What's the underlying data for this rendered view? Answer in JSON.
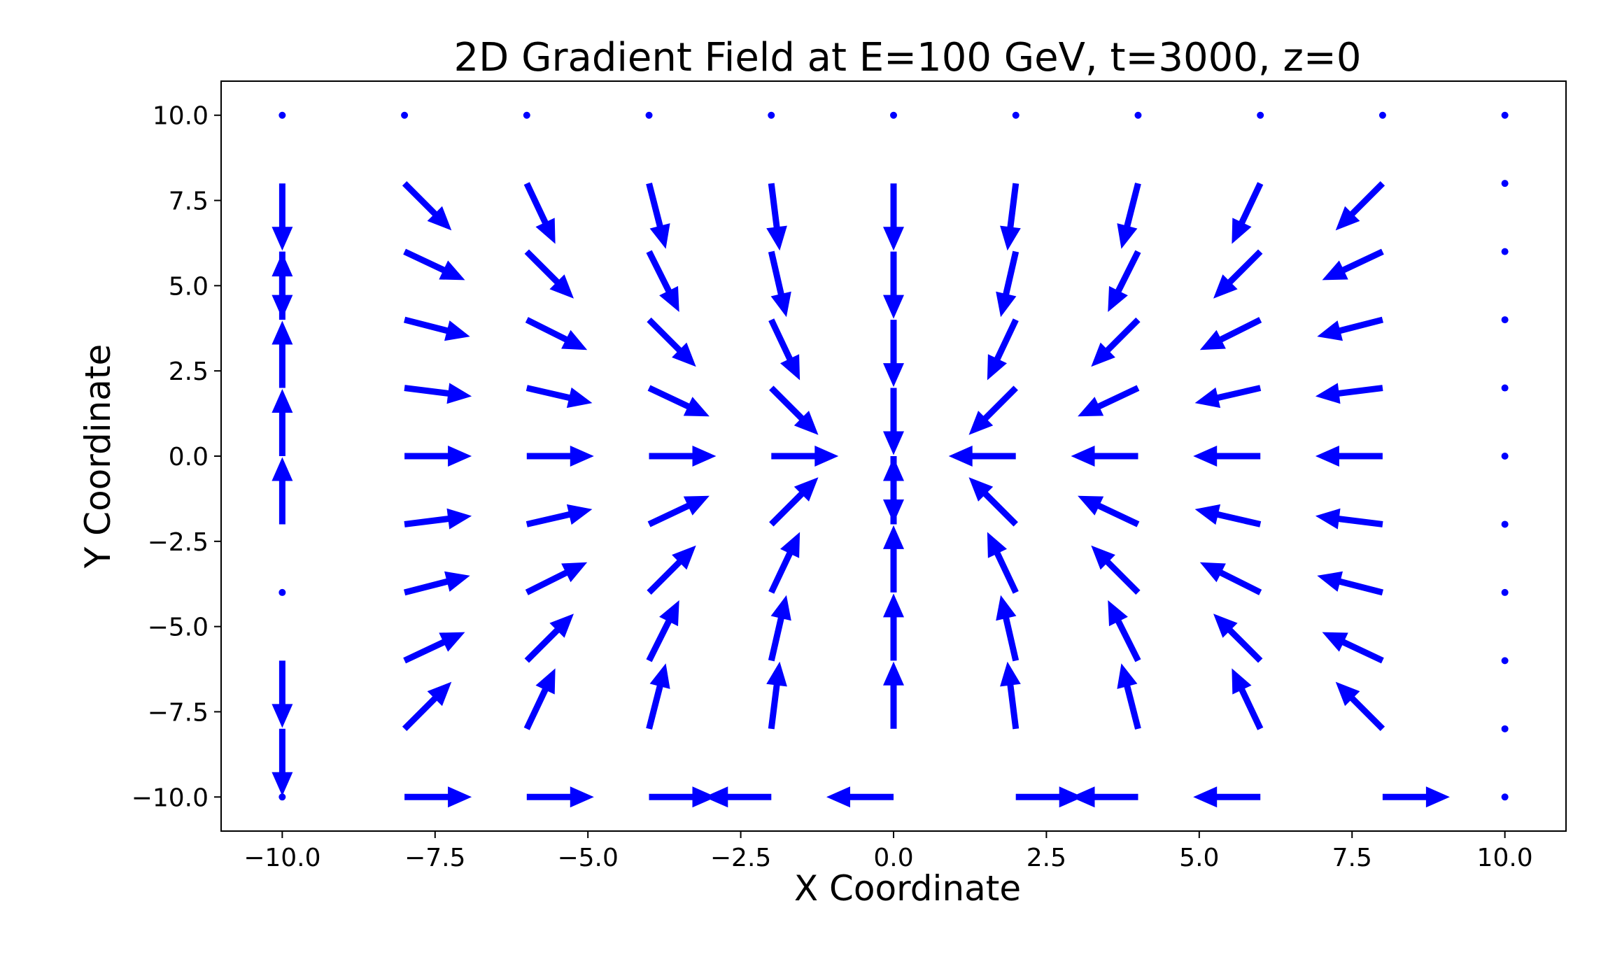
{
  "chart_data": {
    "type": "quiver",
    "title": "2D Gradient Field at E=100 GeV, t=3000, z=0",
    "xlabel": "X Coordinate",
    "ylabel": "Y Coordinate",
    "xlim": [
      -11,
      11
    ],
    "ylim": [
      -11,
      11
    ],
    "x_ticks": [
      -10.0,
      -7.5,
      -5.0,
      -2.5,
      0.0,
      2.5,
      5.0,
      7.5,
      10.0
    ],
    "x_tick_labels": [
      "−10.0",
      "−7.5",
      "−5.0",
      "−2.5",
      "0.0",
      "2.5",
      "5.0",
      "7.5",
      "10.0"
    ],
    "y_ticks": [
      10.0,
      7.5,
      5.0,
      2.5,
      0.0,
      -2.5,
      -5.0,
      -7.5,
      -10.0
    ],
    "y_tick_labels": [
      "10.0",
      "7.5",
      "5.0",
      "2.5",
      "0.0",
      "−2.5",
      "−5.0",
      "−7.5",
      "−10.0"
    ],
    "grid": false,
    "arrow_color": "#0000ff",
    "x_grid_points": [
      -10,
      -8,
      -6,
      -4,
      -2,
      0,
      2,
      4,
      6,
      8,
      10
    ],
    "y_grid_points": [
      -10,
      -8,
      -6,
      -4,
      -2,
      0,
      2,
      4,
      6,
      8,
      10
    ],
    "vectors": [
      {
        "x": -10,
        "y": 10,
        "u": 0,
        "v": 0
      },
      {
        "x": -8,
        "y": 10,
        "u": 0,
        "v": 0
      },
      {
        "x": -6,
        "y": 10,
        "u": 0,
        "v": 0
      },
      {
        "x": -4,
        "y": 10,
        "u": 0,
        "v": 0
      },
      {
        "x": -2,
        "y": 10,
        "u": 0,
        "v": 0
      },
      {
        "x": 0,
        "y": 10,
        "u": 0,
        "v": 0
      },
      {
        "x": 2,
        "y": 10,
        "u": 0,
        "v": 0
      },
      {
        "x": 4,
        "y": 10,
        "u": 0,
        "v": 0
      },
      {
        "x": 6,
        "y": 10,
        "u": 0,
        "v": 0
      },
      {
        "x": 8,
        "y": 10,
        "u": 0,
        "v": 0
      },
      {
        "x": 10,
        "y": 10,
        "u": 0,
        "v": 0
      },
      {
        "x": -10,
        "y": 8,
        "u": 0,
        "v": -2
      },
      {
        "x": -8,
        "y": 8,
        "u": 1.4,
        "v": -1.4
      },
      {
        "x": -6,
        "y": 8,
        "u": 0.85,
        "v": -1.8
      },
      {
        "x": -4,
        "y": 8,
        "u": 0.5,
        "v": -1.95
      },
      {
        "x": -2,
        "y": 8,
        "u": 0.25,
        "v": -2
      },
      {
        "x": 0,
        "y": 8,
        "u": 0,
        "v": -2
      },
      {
        "x": 2,
        "y": 8,
        "u": -0.25,
        "v": -2
      },
      {
        "x": 4,
        "y": 8,
        "u": -0.5,
        "v": -1.95
      },
      {
        "x": 6,
        "y": 8,
        "u": -0.85,
        "v": -1.8
      },
      {
        "x": 8,
        "y": 8,
        "u": -1.4,
        "v": -1.4
      },
      {
        "x": 10,
        "y": 8,
        "u": 0,
        "v": 0
      },
      {
        "x": -10,
        "y": 6,
        "u": 0,
        "v": -2
      },
      {
        "x": -8,
        "y": 6,
        "u": 1.8,
        "v": -0.85
      },
      {
        "x": -6,
        "y": 6,
        "u": 1.4,
        "v": -1.4
      },
      {
        "x": -4,
        "y": 6,
        "u": 0.9,
        "v": -1.8
      },
      {
        "x": -2,
        "y": 6,
        "u": 0.45,
        "v": -1.95
      },
      {
        "x": 0,
        "y": 6,
        "u": 0,
        "v": -2
      },
      {
        "x": 2,
        "y": 6,
        "u": -0.45,
        "v": -1.95
      },
      {
        "x": 4,
        "y": 6,
        "u": -0.9,
        "v": -1.8
      },
      {
        "x": 6,
        "y": 6,
        "u": -1.4,
        "v": -1.4
      },
      {
        "x": 8,
        "y": 6,
        "u": -1.8,
        "v": -0.85
      },
      {
        "x": 10,
        "y": 6,
        "u": 0,
        "v": 0
      },
      {
        "x": -10,
        "y": 4,
        "u": 0,
        "v": 2
      },
      {
        "x": -8,
        "y": 4,
        "u": 1.95,
        "v": -0.5
      },
      {
        "x": -6,
        "y": 4,
        "u": 1.8,
        "v": -0.9
      },
      {
        "x": -4,
        "y": 4,
        "u": 1.4,
        "v": -1.4
      },
      {
        "x": -2,
        "y": 4,
        "u": 0.85,
        "v": -1.8
      },
      {
        "x": 0,
        "y": 4,
        "u": 0,
        "v": -2
      },
      {
        "x": 2,
        "y": 4,
        "u": -0.85,
        "v": -1.8
      },
      {
        "x": 4,
        "y": 4,
        "u": -1.4,
        "v": -1.4
      },
      {
        "x": 6,
        "y": 4,
        "u": -1.8,
        "v": -0.9
      },
      {
        "x": 8,
        "y": 4,
        "u": -1.95,
        "v": -0.5
      },
      {
        "x": 10,
        "y": 4,
        "u": 0,
        "v": 0
      },
      {
        "x": -10,
        "y": 2,
        "u": 0,
        "v": 2
      },
      {
        "x": -8,
        "y": 2,
        "u": 2,
        "v": -0.25
      },
      {
        "x": -6,
        "y": 2,
        "u": 1.95,
        "v": -0.45
      },
      {
        "x": -4,
        "y": 2,
        "u": 1.8,
        "v": -0.85
      },
      {
        "x": -2,
        "y": 2,
        "u": 1.4,
        "v": -1.4
      },
      {
        "x": 0,
        "y": 2,
        "u": 0,
        "v": -2
      },
      {
        "x": 2,
        "y": 2,
        "u": -1.4,
        "v": -1.4
      },
      {
        "x": 4,
        "y": 2,
        "u": -1.8,
        "v": -0.85
      },
      {
        "x": 6,
        "y": 2,
        "u": -1.95,
        "v": -0.45
      },
      {
        "x": 8,
        "y": 2,
        "u": -2,
        "v": -0.25
      },
      {
        "x": 10,
        "y": 2,
        "u": 0,
        "v": 0
      },
      {
        "x": -10,
        "y": 0,
        "u": 0,
        "v": 2
      },
      {
        "x": -8,
        "y": 0,
        "u": 2,
        "v": 0
      },
      {
        "x": -6,
        "y": 0,
        "u": 2,
        "v": 0
      },
      {
        "x": -4,
        "y": 0,
        "u": 2,
        "v": 0
      },
      {
        "x": -2,
        "y": 0,
        "u": 2,
        "v": 0
      },
      {
        "x": 0,
        "y": 0,
        "u": 0,
        "v": -2
      },
      {
        "x": 2,
        "y": 0,
        "u": -2,
        "v": 0
      },
      {
        "x": 4,
        "y": 0,
        "u": -2,
        "v": 0
      },
      {
        "x": 6,
        "y": 0,
        "u": -2,
        "v": 0
      },
      {
        "x": 8,
        "y": 0,
        "u": -2,
        "v": 0
      },
      {
        "x": 10,
        "y": 0,
        "u": 0,
        "v": 0
      },
      {
        "x": -10,
        "y": -2,
        "u": 0,
        "v": 2
      },
      {
        "x": -8,
        "y": -2,
        "u": 2,
        "v": 0.25
      },
      {
        "x": -6,
        "y": -2,
        "u": 1.95,
        "v": 0.45
      },
      {
        "x": -4,
        "y": -2,
        "u": 1.8,
        "v": 0.85
      },
      {
        "x": -2,
        "y": -2,
        "u": 1.4,
        "v": 1.4
      },
      {
        "x": 0,
        "y": -2,
        "u": 0,
        "v": 2
      },
      {
        "x": 2,
        "y": -2,
        "u": -1.4,
        "v": 1.4
      },
      {
        "x": 4,
        "y": -2,
        "u": -1.8,
        "v": 0.85
      },
      {
        "x": 6,
        "y": -2,
        "u": -1.95,
        "v": 0.45
      },
      {
        "x": 8,
        "y": -2,
        "u": -2,
        "v": 0.25
      },
      {
        "x": 10,
        "y": -2,
        "u": 0,
        "v": 0
      },
      {
        "x": -10,
        "y": -4,
        "u": 0,
        "v": 0
      },
      {
        "x": -8,
        "y": -4,
        "u": 1.95,
        "v": 0.5
      },
      {
        "x": -6,
        "y": -4,
        "u": 1.8,
        "v": 0.9
      },
      {
        "x": -4,
        "y": -4,
        "u": 1.4,
        "v": 1.4
      },
      {
        "x": -2,
        "y": -4,
        "u": 0.85,
        "v": 1.8
      },
      {
        "x": 0,
        "y": -4,
        "u": 0,
        "v": 2
      },
      {
        "x": 2,
        "y": -4,
        "u": -0.85,
        "v": 1.8
      },
      {
        "x": 4,
        "y": -4,
        "u": -1.4,
        "v": 1.4
      },
      {
        "x": 6,
        "y": -4,
        "u": -1.8,
        "v": 0.9
      },
      {
        "x": 8,
        "y": -4,
        "u": -1.95,
        "v": 0.5
      },
      {
        "x": 10,
        "y": -4,
        "u": 0,
        "v": 0
      },
      {
        "x": -10,
        "y": -6,
        "u": 0,
        "v": -2
      },
      {
        "x": -8,
        "y": -6,
        "u": 1.8,
        "v": 0.85
      },
      {
        "x": -6,
        "y": -6,
        "u": 1.4,
        "v": 1.4
      },
      {
        "x": -4,
        "y": -6,
        "u": 0.9,
        "v": 1.8
      },
      {
        "x": -2,
        "y": -6,
        "u": 0.45,
        "v": 1.95
      },
      {
        "x": 0,
        "y": -6,
        "u": 0,
        "v": 2
      },
      {
        "x": 2,
        "y": -6,
        "u": -0.45,
        "v": 1.95
      },
      {
        "x": 4,
        "y": -6,
        "u": -0.9,
        "v": 1.8
      },
      {
        "x": 6,
        "y": -6,
        "u": -1.4,
        "v": 1.4
      },
      {
        "x": 8,
        "y": -6,
        "u": -1.8,
        "v": 0.85
      },
      {
        "x": 10,
        "y": -6,
        "u": 0,
        "v": 0
      },
      {
        "x": -10,
        "y": -8,
        "u": 0,
        "v": -2
      },
      {
        "x": -8,
        "y": -8,
        "u": 1.4,
        "v": 1.4
      },
      {
        "x": -6,
        "y": -8,
        "u": 0.85,
        "v": 1.8
      },
      {
        "x": -4,
        "y": -8,
        "u": 0.5,
        "v": 1.95
      },
      {
        "x": -2,
        "y": -8,
        "u": 0.25,
        "v": 2
      },
      {
        "x": 0,
        "y": -8,
        "u": 0,
        "v": 2
      },
      {
        "x": 2,
        "y": -8,
        "u": -0.25,
        "v": 2
      },
      {
        "x": 4,
        "y": -8,
        "u": -0.5,
        "v": 1.95
      },
      {
        "x": 6,
        "y": -8,
        "u": -0.85,
        "v": 1.8
      },
      {
        "x": 8,
        "y": -8,
        "u": -1.4,
        "v": 1.4
      },
      {
        "x": 10,
        "y": -8,
        "u": 0,
        "v": 0
      },
      {
        "x": -10,
        "y": -10,
        "u": 0,
        "v": 0
      },
      {
        "x": -8,
        "y": -10,
        "u": 2,
        "v": 0
      },
      {
        "x": -6,
        "y": -10,
        "u": 2,
        "v": 0
      },
      {
        "x": -4,
        "y": -10,
        "u": 2,
        "v": 0
      },
      {
        "x": -2,
        "y": -10,
        "u": -2,
        "v": 0
      },
      {
        "x": 0,
        "y": -10,
        "u": -2,
        "v": 0
      },
      {
        "x": 2,
        "y": -10,
        "u": 2,
        "v": 0
      },
      {
        "x": 4,
        "y": -10,
        "u": -2,
        "v": 0
      },
      {
        "x": 6,
        "y": -10,
        "u": -2,
        "v": 0
      },
      {
        "x": 8,
        "y": -10,
        "u": 2,
        "v": 0
      },
      {
        "x": 10,
        "y": -10,
        "u": 0,
        "v": 0
      }
    ]
  }
}
